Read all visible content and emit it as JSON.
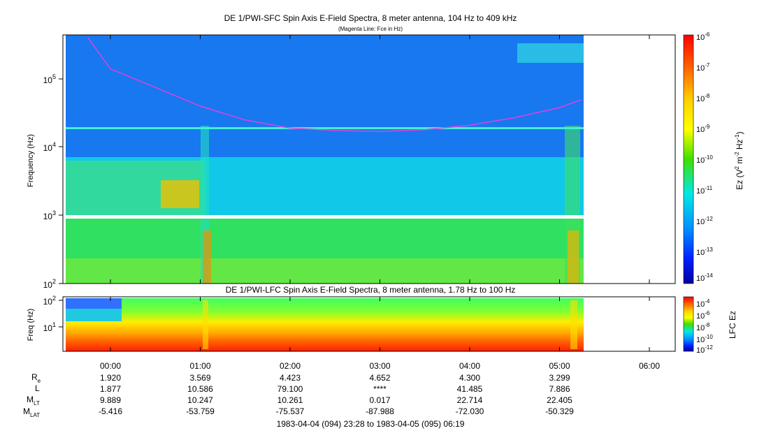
{
  "chart_data": [
    {
      "type": "heatmap",
      "title": "DE 1/PWI-SFC  Spin Axis E-Field Spectra, 8 meter antenna, 104 Hz to 409 kHz",
      "subtitle": "(Magenta Line: Fce in Hz)",
      "ylabel": "Frequency (Hz)",
      "yscale": "log",
      "ylim": [
        100,
        409000
      ],
      "y_ticks": [
        "10^2",
        "10^3",
        "10^4",
        "10^5"
      ],
      "colorbar": {
        "label": "Ez (V^2 m^-2 Hz^-1)",
        "scale": "log",
        "ticks": [
          "10^-6",
          "10^-7",
          "10^-8",
          "10^-9",
          "10^-10",
          "10^-11",
          "10^-12",
          "10^-13",
          "10^-14"
        ]
      },
      "fce_line": {
        "color": "#e040e0",
        "x": [
          "23:45",
          "00:00",
          "00:30",
          "01:00",
          "01:30",
          "02:00",
          "02:30",
          "03:00",
          "03:30",
          "04:00",
          "04:30",
          "05:00",
          "05:15"
        ],
        "y": [
          400000,
          140000,
          75000,
          40000,
          25000,
          19000,
          17500,
          17000,
          18000,
          21000,
          27000,
          38000,
          50000
        ]
      }
    },
    {
      "type": "heatmap",
      "title": "DE 1/PWI-LFC  Spin Axis E-Field Spectra, 8 meter antenna, 1.78 Hz to 100 Hz",
      "ylabel": "Freq (Hz)",
      "yscale": "log",
      "ylim": [
        1.78,
        100
      ],
      "y_ticks": [
        "10^1",
        "10^2"
      ],
      "colorbar": {
        "label": "LFC Ez",
        "scale": "log",
        "ticks": [
          "10^-4",
          "10^-6",
          "10^-8",
          "10^-10",
          "10^-12"
        ]
      }
    }
  ],
  "time_axis": {
    "ticks": [
      "00:00",
      "01:00",
      "02:00",
      "03:00",
      "04:00",
      "05:00",
      "06:00"
    ],
    "range_label": "1983-04-04 (094) 23:28 to 1983-04-05 (095) 06:19"
  },
  "ephemeris": [
    {
      "label": "R",
      "sub": "e",
      "values": [
        "1.920",
        "3.569",
        "4.423",
        "4.652",
        "4.300",
        "3.299"
      ]
    },
    {
      "label": "L",
      "sub": "",
      "values": [
        "1.877",
        "10.586",
        "79.100",
        "****",
        "41.485",
        "7.886"
      ]
    },
    {
      "label": "M",
      "sub": "LT",
      "values": [
        "9.889",
        "10.247",
        "10.261",
        "0.017",
        "22.714",
        "22.405"
      ]
    },
    {
      "label": "M",
      "sub": "LAT",
      "values": [
        "-5.416",
        "-53.759",
        "-75.537",
        "-87.988",
        "-72.030",
        "-50.329"
      ]
    }
  ]
}
